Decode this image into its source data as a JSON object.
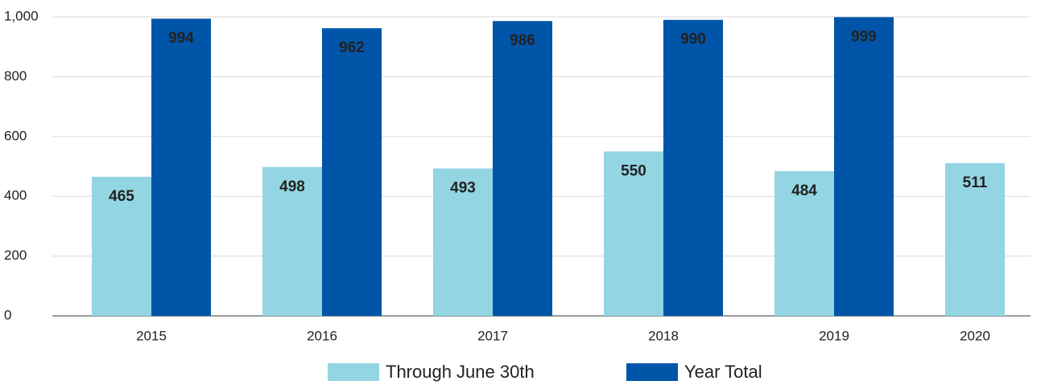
{
  "chart_data": {
    "type": "bar",
    "categories": [
      "2015",
      "2016",
      "2017",
      "2018",
      "2019",
      "2020"
    ],
    "series": [
      {
        "name": "Through June 30th",
        "color": "#93d5e3",
        "values": [
          465,
          498,
          493,
          550,
          484,
          511
        ]
      },
      {
        "name": "Year Total",
        "color": "#0055a8",
        "values": [
          994,
          962,
          986,
          990,
          999,
          null
        ]
      }
    ],
    "ylim": [
      0,
      1000
    ],
    "yticks": [
      0,
      200,
      400,
      600,
      800,
      {
        "value": 1000,
        "label": "1,000"
      }
    ],
    "grid": true
  }
}
